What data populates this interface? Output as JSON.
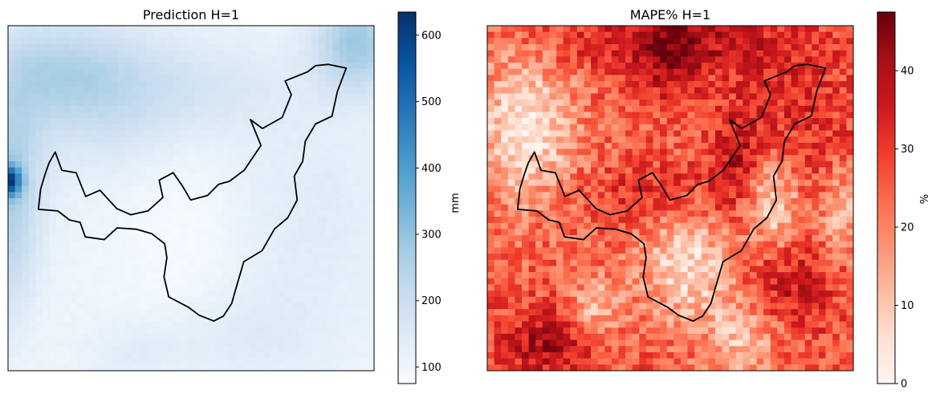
{
  "chart_data": [
    {
      "type": "heatmap",
      "title": "Prediction H=1",
      "colormap": "Blues",
      "colorbar": {
        "label": "mm",
        "range": [
          75,
          635
        ],
        "ticks": [
          100,
          200,
          300,
          400,
          500,
          600
        ]
      },
      "grid": false,
      "axes_ticks": false,
      "overlay": "region outline (black)",
      "grid_size": [
        56,
        53
      ],
      "value_description": "mostly 80-200 mm; higher values (~250-350 mm) in upper-left and along left edge, hotspot ~620 mm at left edge mid-height, elevated (~300 mm) at top-right corner"
    },
    {
      "type": "heatmap",
      "title": "MAPE% H=1",
      "colormap": "Reds",
      "colorbar": {
        "label": "%",
        "range": [
          0,
          47.5
        ],
        "ticks": [
          0,
          10,
          20,
          30,
          40
        ]
      },
      "grid": false,
      "axes_ticks": false,
      "overlay": "region outline (black)",
      "grid_size": [
        56,
        53
      ],
      "value_description": "values 0-47%; high (~40-47%) at top-center and along a diagonal band through the region's north, lower (~0-10%) in patches at left-center, center and right-center"
    }
  ]
}
